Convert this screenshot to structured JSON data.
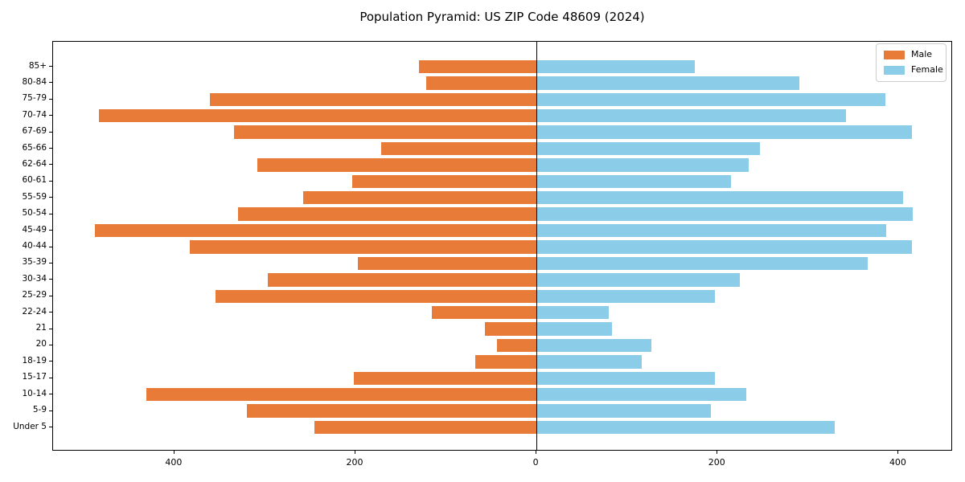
{
  "title": "Population Pyramid: US ZIP Code 48609 (2024)",
  "legend": {
    "male_label": "Male",
    "female_label": "Female"
  },
  "colors": {
    "male": "#e87b38",
    "female": "#8bcde8",
    "axis": "#000000",
    "legend_border": "#cccccc"
  },
  "chart_data": {
    "type": "bar",
    "orientation": "horizontal-pyramid",
    "title": "Population Pyramid: US ZIP Code 48609 (2024)",
    "categories": [
      "85+",
      "80-84",
      "75-79",
      "70-74",
      "67-69",
      "65-66",
      "62-64",
      "60-61",
      "55-59",
      "50-54",
      "45-49",
      "40-44",
      "35-39",
      "30-34",
      "25-29",
      "22-24",
      "21",
      "20",
      "18-19",
      "15-17",
      "10-14",
      "5-9",
      "Under 5"
    ],
    "series": [
      {
        "name": "Male",
        "side": "left",
        "color": "#e87b38",
        "values": [
          130,
          122,
          361,
          483,
          334,
          172,
          308,
          204,
          258,
          330,
          488,
          383,
          197,
          297,
          355,
          116,
          57,
          44,
          68,
          202,
          431,
          320,
          245
        ]
      },
      {
        "name": "Female",
        "side": "right",
        "color": "#8bcde8",
        "values": [
          175,
          290,
          385,
          342,
          415,
          247,
          234,
          215,
          405,
          416,
          386,
          415,
          366,
          225,
          197,
          80,
          83,
          127,
          116,
          197,
          232,
          193,
          329
        ]
      }
    ],
    "x_axis": {
      "xlim": [
        -534,
        460
      ],
      "tick_values": [
        -400,
        -200,
        0,
        200,
        400
      ],
      "tick_labels": [
        "400",
        "200",
        "0",
        "200",
        "400"
      ]
    },
    "ylabel": "",
    "xlabel": "",
    "grid": false,
    "legend_position": "upper right"
  }
}
